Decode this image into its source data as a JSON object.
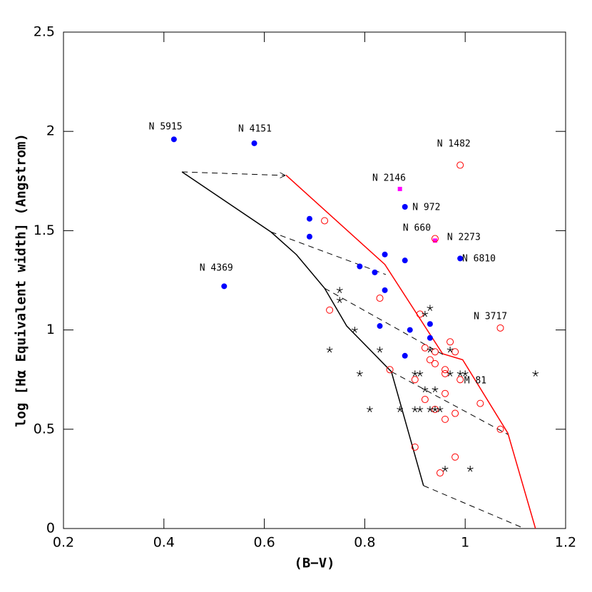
{
  "chart_data": {
    "type": "scatter",
    "xlabel": "(B−V)",
    "ylabel": "log [Hα Equivalent width] (Angstrom)",
    "xlim": [
      0.2,
      1.2
    ],
    "ylim": [
      0,
      2.5
    ],
    "xticks": [
      0.2,
      0.4,
      0.6,
      0.8,
      1,
      1.2
    ],
    "yticks": [
      0,
      0.5,
      1,
      1.5,
      2,
      2.5
    ],
    "series": [
      {
        "marker": "filled-circle",
        "color": "#0000ff",
        "x": [
          0.42,
          0.58,
          0.52,
          0.69,
          0.69,
          0.79,
          0.82,
          0.84,
          0.84,
          0.83,
          0.88,
          0.88,
          0.89,
          0.93,
          0.93,
          0.88,
          0.99
        ],
        "y": [
          1.96,
          1.94,
          1.22,
          1.56,
          1.47,
          1.32,
          1.29,
          1.38,
          1.2,
          1.02,
          1.35,
          1.62,
          1.0,
          1.03,
          0.96,
          0.87,
          1.36
        ]
      },
      {
        "marker": "square",
        "color": "#ff00ff",
        "x": [
          0.87,
          0.94
        ],
        "y": [
          1.71,
          1.45
        ]
      },
      {
        "marker": "open-circle",
        "color": "#ff0000",
        "x": [
          0.99,
          0.94,
          1.07,
          0.72,
          0.73,
          0.83,
          0.91,
          0.92,
          0.97,
          0.94,
          0.98,
          0.93,
          0.94,
          0.85,
          0.96,
          0.96,
          0.9,
          0.99,
          0.92,
          0.96,
          1.03,
          0.94,
          0.98,
          0.96,
          1.07,
          0.9,
          0.98,
          0.95
        ],
        "y": [
          1.83,
          1.46,
          1.01,
          1.55,
          1.1,
          1.16,
          1.08,
          0.91,
          0.94,
          0.89,
          0.89,
          0.85,
          0.83,
          0.8,
          0.8,
          0.78,
          0.75,
          0.75,
          0.65,
          0.68,
          0.63,
          0.6,
          0.58,
          0.55,
          0.5,
          0.41,
          0.36,
          0.28
        ]
      },
      {
        "marker": "star",
        "color": "#000000",
        "x": [
          0.75,
          0.75,
          0.78,
          0.73,
          0.83,
          0.79,
          0.81,
          0.87,
          0.9,
          0.91,
          0.9,
          0.91,
          0.93,
          0.92,
          0.93,
          0.92,
          0.94,
          0.93,
          0.94,
          0.95,
          0.97,
          0.97,
          0.99,
          1.0,
          1.14,
          0.96,
          1.01
        ],
        "y": [
          1.2,
          1.15,
          1.0,
          0.9,
          0.9,
          0.78,
          0.6,
          0.6,
          0.78,
          0.78,
          0.6,
          0.6,
          1.11,
          1.08,
          0.9,
          0.7,
          0.7,
          0.6,
          0.6,
          0.6,
          0.9,
          0.78,
          0.78,
          0.78,
          0.78,
          0.3,
          0.3
        ]
      }
    ],
    "lines": [
      {
        "style": "solid",
        "color": "#000000",
        "x": [
          0.436,
          0.613,
          0.664,
          0.72,
          0.764,
          0.853,
          0.917
        ],
        "y": [
          1.796,
          1.494,
          1.379,
          1.21,
          1.02,
          0.79,
          0.216
        ]
      },
      {
        "style": "solid",
        "color": "#ff0000",
        "x": [
          0.643,
          0.84,
          0.955,
          0.995,
          1.085,
          1.14
        ],
        "y": [
          1.78,
          1.33,
          0.88,
          0.85,
          0.48,
          0
        ]
      },
      {
        "style": "dashed",
        "color": "#000000",
        "arrow": true,
        "x": [
          0.436,
          0.642
        ],
        "y": [
          1.796,
          1.778
        ]
      },
      {
        "style": "dashed",
        "color": "#000000",
        "x": [
          0.613,
          0.842
        ],
        "y": [
          1.494,
          1.279
        ]
      },
      {
        "style": "dashed",
        "color": "#000000",
        "x": [
          0.72,
          0.956
        ],
        "y": [
          1.21,
          0.876
        ]
      },
      {
        "style": "dashed",
        "color": "#000000",
        "x": [
          0.853,
          1.085
        ],
        "y": [
          0.79,
          0.474
        ]
      },
      {
        "style": "dashed",
        "color": "#000000",
        "x": [
          0.917,
          1.118
        ],
        "y": [
          0.216,
          0
        ]
      }
    ],
    "annotations": [
      {
        "text": "N 5915",
        "x": 0.37,
        "y": 2.022
      },
      {
        "text": "N 4151",
        "x": 0.548,
        "y": 2.011
      },
      {
        "text": "N 4369",
        "x": 0.471,
        "y": 1.311
      },
      {
        "text": "N 2146",
        "x": 0.815,
        "y": 1.764
      },
      {
        "text": "N 972",
        "x": 0.895,
        "y": 1.616
      },
      {
        "text": "N 660",
        "x": 0.876,
        "y": 1.512
      },
      {
        "text": "N 2273",
        "x": 0.964,
        "y": 1.466
      },
      {
        "text": "N 6810",
        "x": 0.994,
        "y": 1.358
      },
      {
        "text": "N 1482",
        "x": 0.944,
        "y": 1.936
      },
      {
        "text": "N 3717",
        "x": 1.017,
        "y": 1.067
      },
      {
        "text": "M 81",
        "x": 0.998,
        "y": 0.744
      }
    ]
  }
}
